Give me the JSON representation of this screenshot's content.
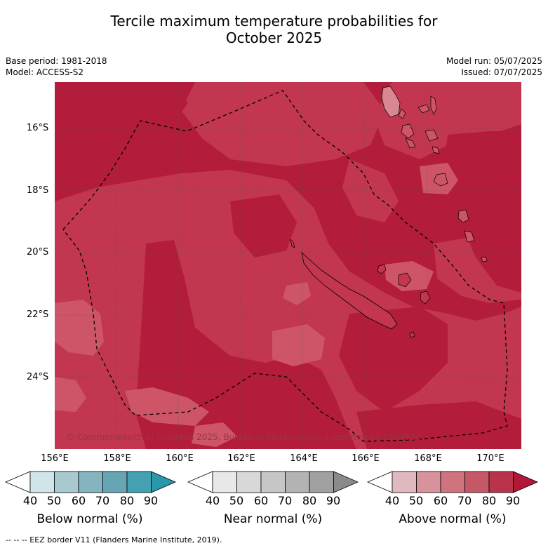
{
  "title": {
    "line1": "Tercile maximum temperature probabilities for",
    "line2": "October 2025"
  },
  "meta_left": {
    "base_period": "Base period: 1981-2018",
    "model": "Model: ACCESS-S2"
  },
  "meta_right": {
    "model_run": "Model run: 05/07/2025",
    "issued": "Issued: 07/07/2025"
  },
  "map": {
    "lat_labels": [
      "16°S",
      "18°S",
      "20°S",
      "22°S",
      "24°S"
    ],
    "lon_labels": [
      "156°E",
      "158°E",
      "160°E",
      "162°E",
      "164°E",
      "166°E",
      "168°E",
      "170°E"
    ],
    "copyright": "© Commonwealth of Australia 2025, Bureau of Meteorology, supported by COSPPac",
    "colors": {
      "above_80_90": "#b31c3b",
      "above_70_80": "#c2374f",
      "above_60_70": "#ce5568",
      "land_light": "#d98892"
    }
  },
  "colorbars": [
    {
      "label": "Below normal (%)",
      "ticks": [
        "40",
        "50",
        "60",
        "70",
        "80",
        "90"
      ],
      "colors": [
        "#ffffff",
        "#cfe5ea",
        "#a7c9cf",
        "#86b4be",
        "#66a6b4",
        "#44a1b2",
        "#2a97ab"
      ]
    },
    {
      "label": "Near normal (%)",
      "ticks": [
        "40",
        "50",
        "60",
        "70",
        "80",
        "90"
      ],
      "colors": [
        "#ffffff",
        "#e8e8e8",
        "#d8d8d8",
        "#c6c6c6",
        "#b3b3b3",
        "#a0a0a0",
        "#8a8a8a"
      ]
    },
    {
      "label": "Above normal (%)",
      "ticks": [
        "40",
        "50",
        "60",
        "70",
        "80",
        "90"
      ],
      "colors": [
        "#ffffff",
        "#e0b8bf",
        "#d8929c",
        "#cf737f",
        "#c45865",
        "#b9344b",
        "#b31838"
      ]
    }
  ],
  "footer": "--  --  -- EEZ border V11 (Flanders Marine Institute, 2019)."
}
